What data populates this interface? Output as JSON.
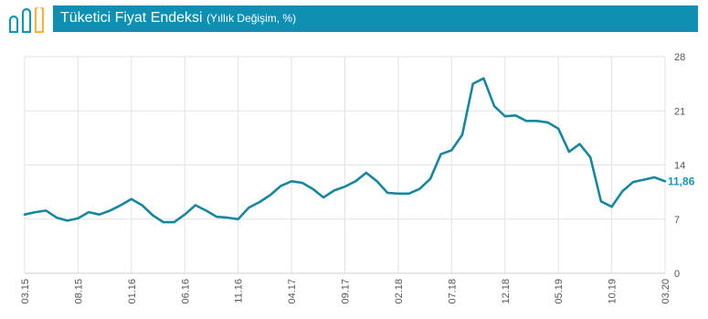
{
  "header": {
    "title": "Tüketici Fiyat Endeksi",
    "subtitle": "(Yıllık Değişim, %)",
    "colors": {
      "accent": "#0f8fb2",
      "line": "#17879f",
      "logo": "#1a94b4"
    }
  },
  "chart_data": {
    "type": "line",
    "title": "Tüketici Fiyat Endeksi",
    "subtitle": "(Yıllık Değişim, %)",
    "xlabel": "",
    "ylabel": "",
    "ylim": [
      0,
      28
    ],
    "yticks": [
      0,
      7,
      14,
      21,
      28
    ],
    "y_axis_side": "right",
    "grid": true,
    "x_tick_labels": [
      "03.15",
      "08.15",
      "01.16",
      "06.16",
      "11.16",
      "04.17",
      "09.17",
      "02.18",
      "07.18",
      "12.18",
      "05.19",
      "10.19",
      "03.20"
    ],
    "x": [
      "03.15",
      "04.15",
      "05.15",
      "06.15",
      "07.15",
      "08.15",
      "09.15",
      "10.15",
      "11.15",
      "12.15",
      "01.16",
      "02.16",
      "03.16",
      "04.16",
      "05.16",
      "06.16",
      "07.16",
      "08.16",
      "09.16",
      "10.16",
      "11.16",
      "12.16",
      "01.17",
      "02.17",
      "03.17",
      "04.17",
      "05.17",
      "06.17",
      "07.17",
      "08.17",
      "09.17",
      "10.17",
      "11.17",
      "12.17",
      "01.18",
      "02.18",
      "03.18",
      "04.18",
      "05.18",
      "06.18",
      "07.18",
      "08.18",
      "09.18",
      "10.18",
      "11.18",
      "12.18",
      "01.19",
      "02.19",
      "03.19",
      "04.19",
      "05.19",
      "06.19",
      "07.19",
      "08.19",
      "09.19",
      "10.19",
      "11.19",
      "12.19",
      "01.20",
      "02.20",
      "03.20"
    ],
    "series": [
      {
        "values": [
          7.6,
          7.9,
          8.1,
          7.2,
          6.8,
          7.1,
          7.9,
          7.6,
          8.1,
          8.8,
          9.6,
          8.8,
          7.5,
          6.6,
          6.6,
          7.6,
          8.8,
          8.1,
          7.3,
          7.2,
          7.0,
          8.5,
          9.2,
          10.1,
          11.3,
          11.9,
          11.7,
          10.9,
          9.8,
          10.7,
          11.2,
          11.9,
          13.0,
          11.9,
          10.4,
          10.3,
          10.3,
          10.9,
          12.2,
          15.4,
          15.9,
          17.9,
          24.5,
          25.2,
          21.6,
          20.3,
          20.4,
          19.7,
          19.7,
          19.5,
          18.7,
          15.7,
          16.7,
          15.0,
          9.3,
          8.6,
          10.6,
          11.8,
          12.1,
          12.4,
          11.9
        ]
      }
    ],
    "end_label": "11,86"
  }
}
